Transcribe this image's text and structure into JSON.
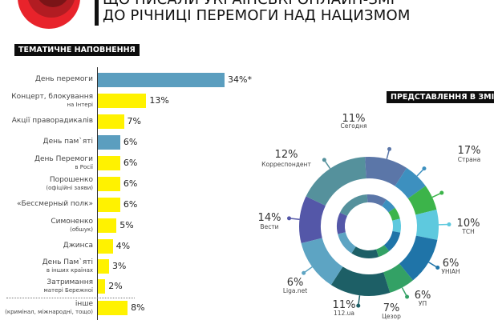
{
  "header": {
    "title_line1": "ЩО ПИСАЛИ УКРАЇНСЬКІ ОНЛАЙН-ЗМІ",
    "title_line2": "ДО РІЧНИЦІ ПЕРЕМОГИ НАД НАЦИЗМОМ",
    "logo": "poppy-logo"
  },
  "chart_data": [
    {
      "type": "bar",
      "orientation": "horizontal",
      "title": "ТЕМАТИЧНЕ НАПОВНЕННЯ",
      "unit": "%",
      "categories": [
        {
          "label": "День перемоги",
          "sub": ""
        },
        {
          "label": "Концерт, блокування",
          "sub": "на Інтері"
        },
        {
          "label": "Акції праворадикалів",
          "sub": ""
        },
        {
          "label": "День пам`яті",
          "sub": ""
        },
        {
          "label": "День Перемоги",
          "sub": "в Росії"
        },
        {
          "label": "Порошенко",
          "sub": "(офіційні заяви)"
        },
        {
          "label": "«Бессмерный полк»",
          "sub": ""
        },
        {
          "label": "Симоненко",
          "sub": "(обшук)"
        },
        {
          "label": "Джинса",
          "sub": ""
        },
        {
          "label": "День Пам`яті",
          "sub": "в інших країнах"
        },
        {
          "label": "Затримання",
          "sub": "матері Бережної"
        },
        {
          "label": "інше",
          "sub": "(кримінал, міжнародні, тощо)"
        }
      ],
      "values": [
        34,
        13,
        7,
        6,
        6,
        6,
        6,
        5,
        4,
        3,
        2,
        8
      ],
      "value_labels": [
        "34%*",
        "13%",
        "7%",
        "6%",
        "6%",
        "6%",
        "6%",
        "5%",
        "4%",
        "3%",
        "2%",
        "8%"
      ],
      "colors": [
        "#5b9ebf",
        "#fff200",
        "#fff200",
        "#5b9ebf",
        "#fff200",
        "#fff200",
        "#fff200",
        "#fff200",
        "#fff200",
        "#fff200",
        "#fff200",
        "#fff200"
      ],
      "xlim": [
        0,
        34
      ]
    },
    {
      "type": "pie",
      "variant": "donut",
      "title": "ПРЕДСТАВЛЕННЯ В ЗМІ",
      "slices": [
        {
          "name": "Сегодня",
          "value": 11,
          "label": "11%",
          "color": "#5457a8"
        },
        {
          "name": "Страна",
          "value": 17,
          "label": "17%",
          "color": "#55919c"
        },
        {
          "name": "ТСН",
          "value": 10,
          "label": "10%",
          "color": "#5b76a8"
        },
        {
          "name": "УНІАН",
          "value": 6,
          "label": "6%",
          "color": "#3d90bf"
        },
        {
          "name": "УП",
          "value": 6,
          "label": "6%",
          "color": "#3cb44a"
        },
        {
          "name": "Цезор",
          "value": 7,
          "label": "7%",
          "color": "#5ec9de"
        },
        {
          "name": "112.ua",
          "value": 11,
          "label": "11%",
          "color": "#1f74a8"
        },
        {
          "name": "Liga.net",
          "value": 6,
          "label": "6%",
          "color": "#33a165"
        },
        {
          "name": "Вести",
          "value": 14,
          "label": "14%",
          "color": "#1d5f66"
        },
        {
          "name": "Корреспондент",
          "value": 12,
          "label": "12%",
          "color": "#5da4c3"
        }
      ]
    }
  ]
}
